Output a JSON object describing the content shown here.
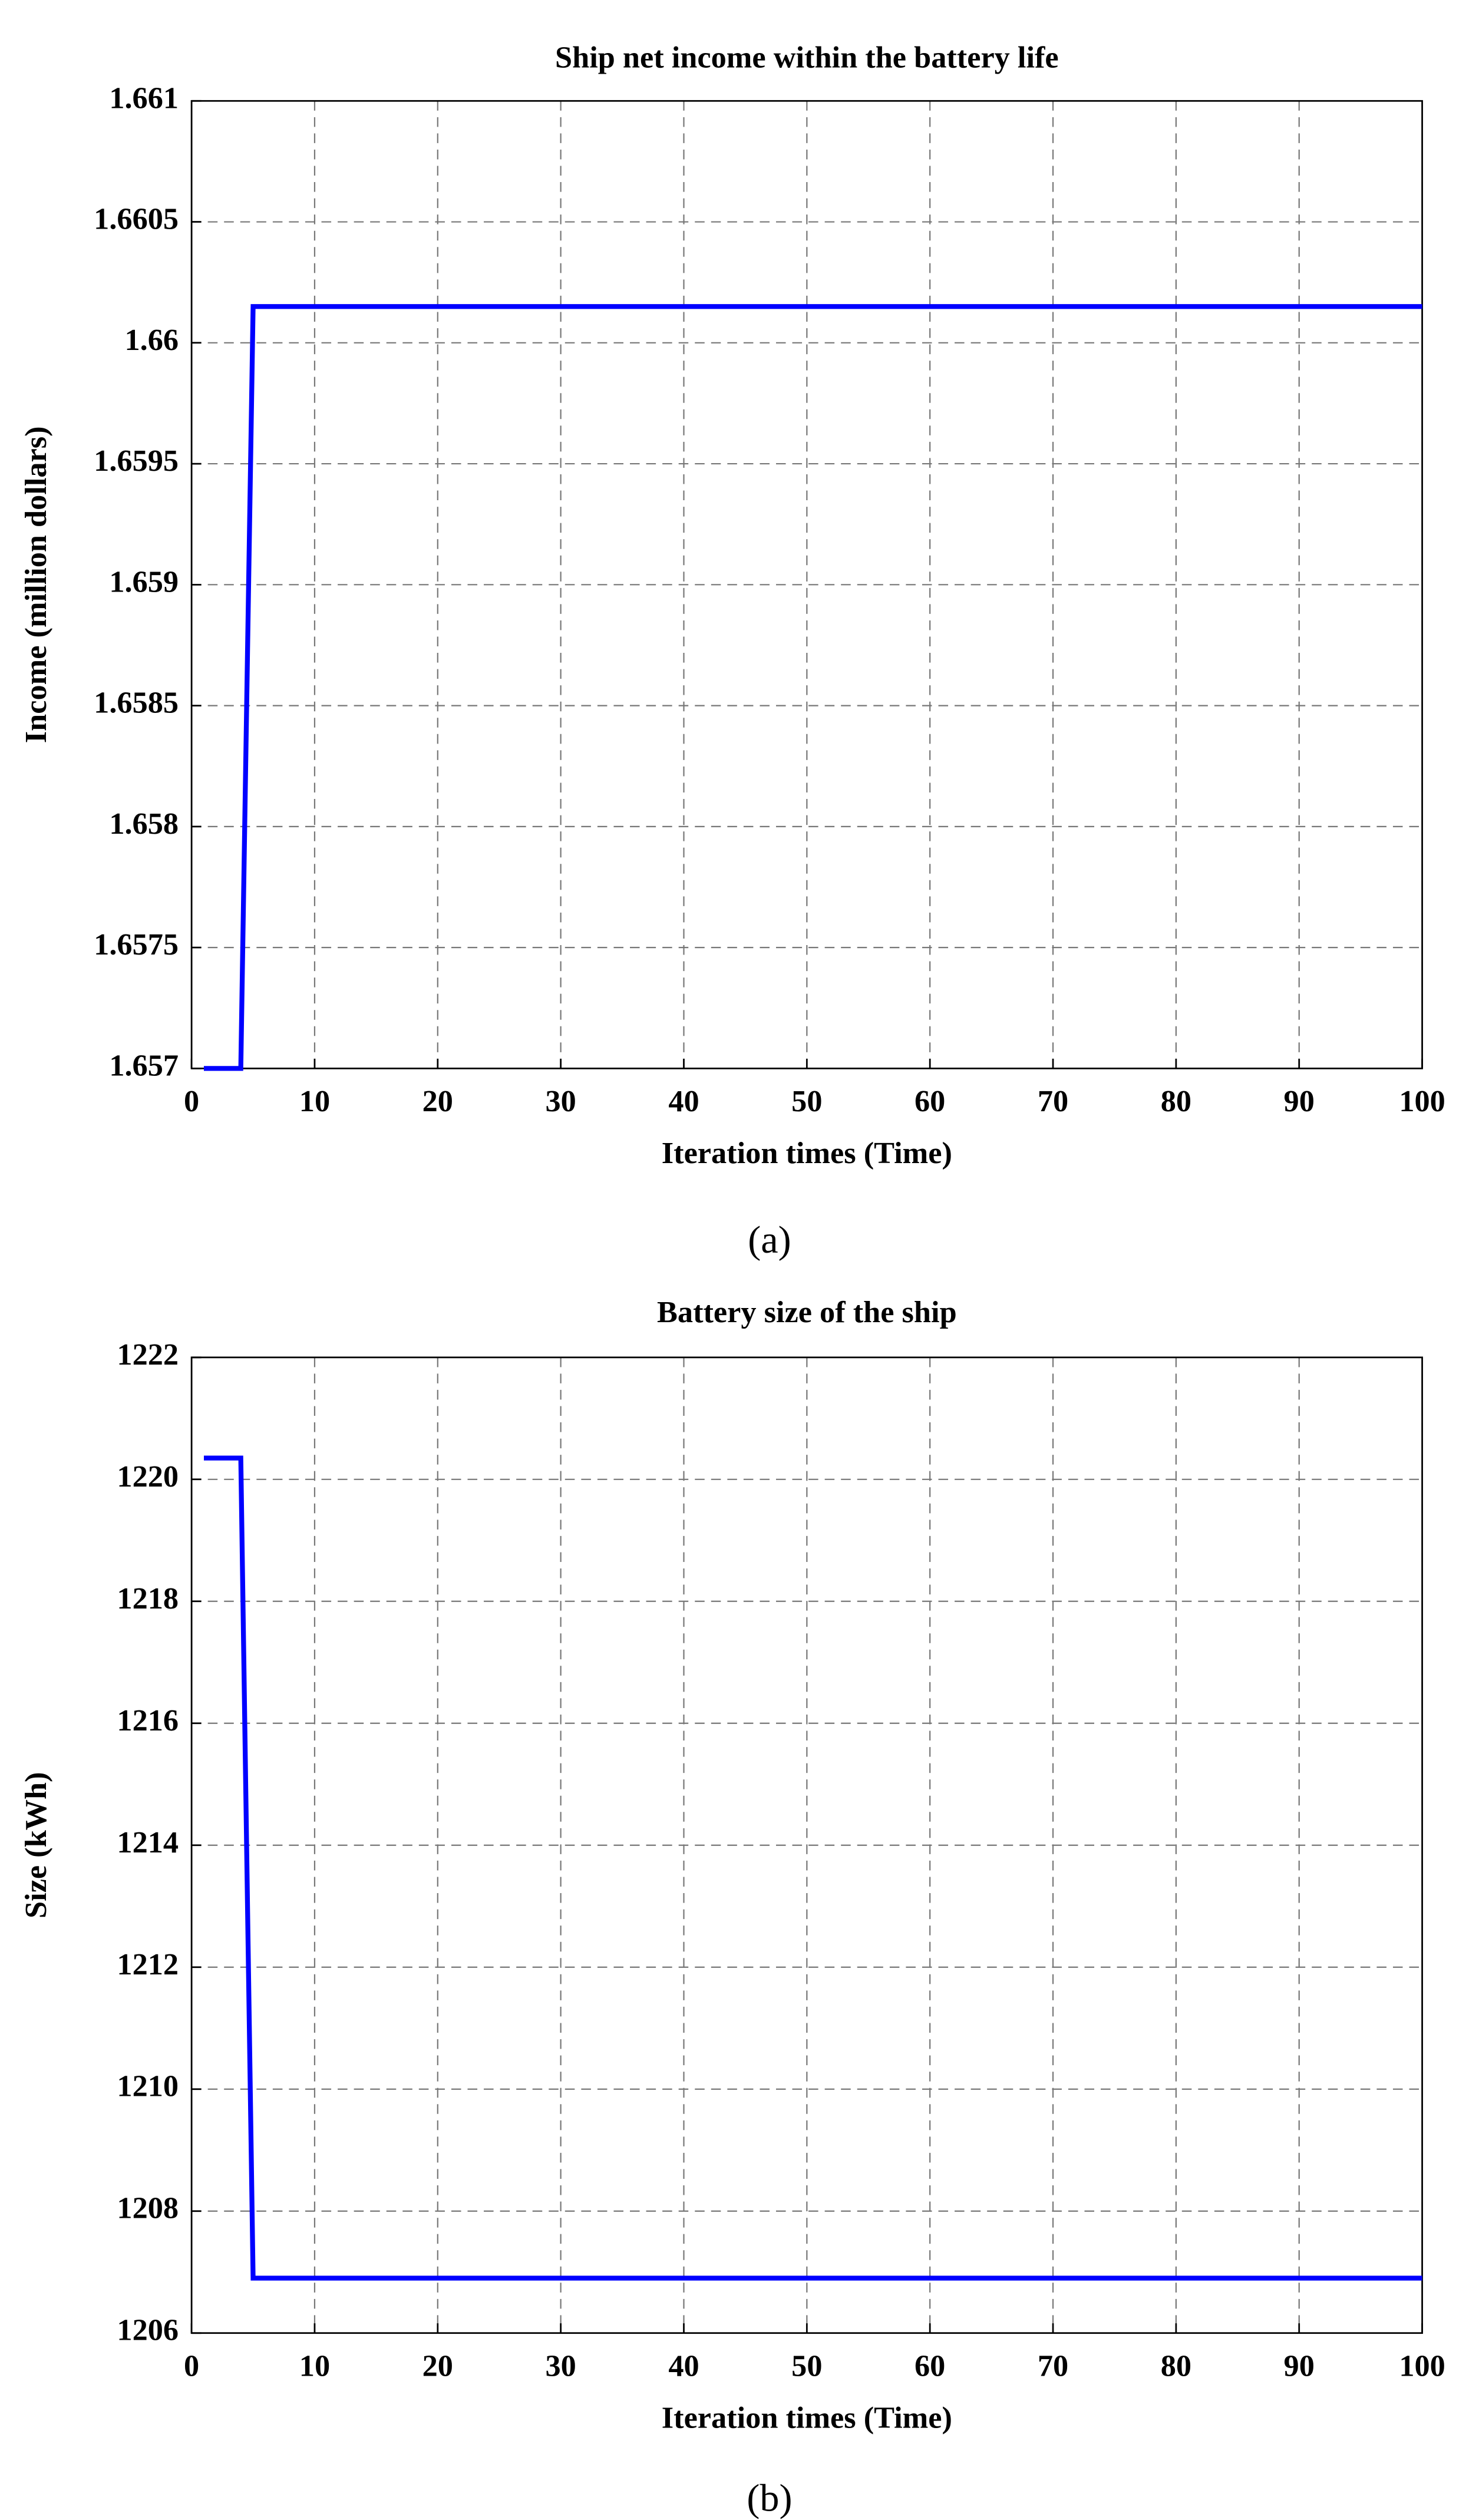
{
  "chart_data": [
    {
      "type": "line",
      "title": "Ship net income within the battery life",
      "x_label": "Iteration times (Time)",
      "y_label": "Income (million dollars)",
      "caption": "(a)",
      "x": [
        1,
        4,
        5,
        100
      ],
      "series": [
        {
          "name": "Income",
          "color": "#0000ff",
          "values": [
            1.657,
            1.657,
            1.66015,
            1.66015
          ]
        }
      ],
      "xlim": [
        0,
        100
      ],
      "xticks": [
        0,
        10,
        20,
        30,
        40,
        50,
        60,
        70,
        80,
        90,
        100
      ],
      "ylim": [
        1.657,
        1.661
      ],
      "yticks": [
        1.657,
        1.6575,
        1.658,
        1.6585,
        1.659,
        1.6595,
        1.66,
        1.6605,
        1.661
      ],
      "grid": true
    },
    {
      "type": "line",
      "title": "Battery size of the ship",
      "x_label": "Iteration times (Time)",
      "y_label": "Size (kWh)",
      "caption": "(b)",
      "x": [
        1,
        4,
        5,
        100
      ],
      "series": [
        {
          "name": "Size",
          "color": "#0000ff",
          "values": [
            1220.35,
            1220.35,
            1206.9,
            1206.9
          ]
        }
      ],
      "xlim": [
        0,
        100
      ],
      "xticks": [
        0,
        10,
        20,
        30,
        40,
        50,
        60,
        70,
        80,
        90,
        100
      ],
      "ylim": [
        1206,
        1222
      ],
      "yticks": [
        1206,
        1208,
        1210,
        1212,
        1214,
        1216,
        1218,
        1220,
        1222
      ],
      "grid": true
    }
  ]
}
